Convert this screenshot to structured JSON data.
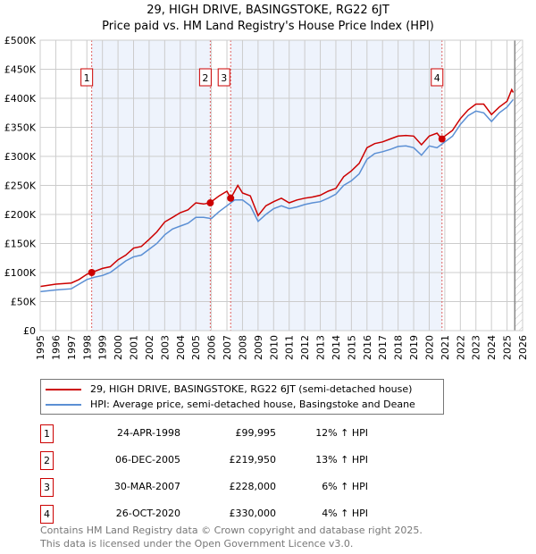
{
  "chart_data": {
    "type": "line",
    "title": "29, HIGH DRIVE, BASINGSTOKE, RG22 6JT",
    "subtitle": "Price paid vs. HM Land Registry's House Price Index (HPI)",
    "xlim": [
      1995,
      2026
    ],
    "ylim": [
      0,
      500000
    ],
    "y_ticks": [
      {
        "v": 0,
        "label": "£0"
      },
      {
        "v": 50000,
        "label": "£50K"
      },
      {
        "v": 100000,
        "label": "£100K"
      },
      {
        "v": 150000,
        "label": "£150K"
      },
      {
        "v": 200000,
        "label": "£200K"
      },
      {
        "v": 250000,
        "label": "£250K"
      },
      {
        "v": 300000,
        "label": "£300K"
      },
      {
        "v": 350000,
        "label": "£350K"
      },
      {
        "v": 400000,
        "label": "£400K"
      },
      {
        "v": 450000,
        "label": "£450K"
      },
      {
        "v": 500000,
        "label": "£500K"
      }
    ],
    "x_ticks": [
      "1995",
      "1996",
      "1997",
      "1998",
      "1999",
      "2000",
      "2001",
      "2002",
      "2003",
      "2004",
      "2005",
      "2006",
      "2007",
      "2008",
      "2009",
      "2010",
      "2011",
      "2012",
      "2013",
      "2014",
      "2015",
      "2016",
      "2017",
      "2018",
      "2019",
      "2020",
      "2021",
      "2022",
      "2023",
      "2024",
      "2025",
      "2026"
    ],
    "grid": true,
    "forecast_hatch_from": 2025.5,
    "series": [
      {
        "name": "29, HIGH DRIVE, BASINGSTOKE, RG22 6JT (semi-detached house)",
        "color": "#cc0000",
        "x": [
          1995,
          1996,
          1997,
          1997.5,
          1998,
          1998.3,
          1999,
          1999.5,
          2000,
          2000.5,
          2001,
          2001.5,
          2002,
          2002.5,
          2003,
          2003.5,
          2004,
          2004.5,
          2005,
          2005.5,
          2005.9,
          2006.5,
          2007,
          2007.25,
          2007.7,
          2008,
          2008.5,
          2009,
          2009.5,
          2010,
          2010.5,
          2011,
          2011.5,
          2012,
          2012.5,
          2013,
          2013.5,
          2014,
          2014.5,
          2015,
          2015.5,
          2016,
          2016.5,
          2017,
          2017.5,
          2018,
          2018.5,
          2019,
          2019.5,
          2020,
          2020.5,
          2020.8,
          2021,
          2021.5,
          2022,
          2022.5,
          2023,
          2023.5,
          2024,
          2024.5,
          2025,
          2025.3,
          2025.4
        ],
        "values": [
          76000,
          80000,
          82000,
          88000,
          97000,
          100000,
          107000,
          110000,
          122000,
          130000,
          142000,
          145000,
          157000,
          170000,
          187000,
          195000,
          203000,
          208000,
          220000,
          218000,
          220000,
          232000,
          240000,
          228000,
          250000,
          237000,
          232000,
          198000,
          215000,
          222000,
          228000,
          220000,
          225000,
          228000,
          230000,
          233000,
          240000,
          245000,
          265000,
          275000,
          288000,
          315000,
          322000,
          325000,
          330000,
          335000,
          336000,
          335000,
          320000,
          335000,
          340000,
          330000,
          335000,
          345000,
          365000,
          380000,
          390000,
          390000,
          372000,
          385000,
          395000,
          415000,
          410000
        ]
      },
      {
        "name": "HPI: Average price, semi-detached house, Basingstoke and Deane",
        "color": "#5b8fd4",
        "x": [
          1995,
          1996,
          1997,
          1997.5,
          1998,
          1998.5,
          1999,
          1999.5,
          2000,
          2000.5,
          2001,
          2001.5,
          2002,
          2002.5,
          2003,
          2003.5,
          2004,
          2004.5,
          2005,
          2005.5,
          2006,
          2006.5,
          2007,
          2007.5,
          2008,
          2008.5,
          2009,
          2009.5,
          2010,
          2010.5,
          2011,
          2011.5,
          2012,
          2012.5,
          2013,
          2013.5,
          2014,
          2014.5,
          2015,
          2015.5,
          2016,
          2016.5,
          2017,
          2017.5,
          2018,
          2018.5,
          2019,
          2019.5,
          2020,
          2020.5,
          2021,
          2021.5,
          2022,
          2022.5,
          2023,
          2023.5,
          2024,
          2024.5,
          2025,
          2025.4
        ],
        "values": [
          67000,
          70000,
          72000,
          80000,
          88000,
          92000,
          95000,
          100000,
          110000,
          120000,
          127000,
          130000,
          140000,
          150000,
          165000,
          175000,
          180000,
          185000,
          195000,
          195000,
          193000,
          205000,
          215000,
          225000,
          225000,
          215000,
          188000,
          200000,
          210000,
          215000,
          210000,
          213000,
          217000,
          220000,
          222000,
          228000,
          235000,
          250000,
          258000,
          270000,
          295000,
          305000,
          308000,
          312000,
          317000,
          318000,
          315000,
          302000,
          318000,
          315000,
          325000,
          335000,
          355000,
          370000,
          378000,
          375000,
          360000,
          375000,
          385000,
          398000
        ]
      }
    ],
    "sales": [
      {
        "num": "1",
        "x": 1998.31,
        "price": 99995,
        "date": "24-APR-1998",
        "price_label": "£99,995",
        "hpi": "12% ↑ HPI"
      },
      {
        "num": "2",
        "x": 2005.93,
        "price": 219950,
        "date": "06-DEC-2005",
        "price_label": "£219,950",
        "hpi": "13% ↑ HPI"
      },
      {
        "num": "3",
        "x": 2007.24,
        "price": 228000,
        "date": "30-MAR-2007",
        "price_label": "£228,000",
        "hpi": "6% ↑ HPI"
      },
      {
        "num": "4",
        "x": 2020.82,
        "price": 330000,
        "date": "26-OCT-2020",
        "price_label": "£330,000",
        "hpi": "4% ↑ HPI"
      }
    ],
    "legend_position": "below"
  },
  "footer": {
    "line1": "Contains HM Land Registry data © Crown copyright and database right 2025.",
    "line2": "This data is licensed under the Open Government Licence v3.0."
  }
}
